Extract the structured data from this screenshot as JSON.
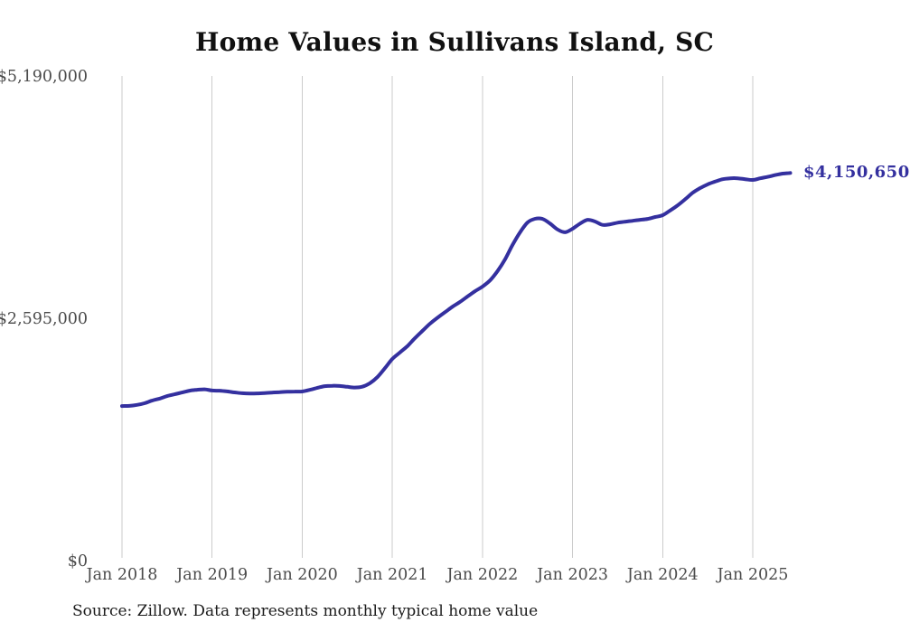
{
  "chart_data": {
    "type": "line",
    "title": "Home Values in Sullivans Island, SC",
    "source_note": "Source: Zillow. Data represents monthly typical home value",
    "series_name": "Typical home value",
    "unit": "USD",
    "frequency": "monthly",
    "start": "Jan 2018",
    "end": "Jun 2025",
    "end_label": "$4,150,650",
    "end_value": 4150650,
    "ylim": [
      0,
      5190000
    ],
    "grid": "vertical-year-lines",
    "legend": "none",
    "line_color": "#34309f",
    "grid_color": "#cbcbcb",
    "tick_label_color": "#4b4b4b",
    "title_color": "#111111",
    "y_ticks": [
      {
        "value": 0,
        "label": "$0"
      },
      {
        "value": 2595000,
        "label": "$2,595,000"
      },
      {
        "value": 5190000,
        "label": "$5,190,000"
      }
    ],
    "x_ticks": [
      {
        "month": 0,
        "label": "Jan 2018"
      },
      {
        "month": 12,
        "label": "Jan 2019"
      },
      {
        "month": 24,
        "label": "Jan 2020"
      },
      {
        "month": 36,
        "label": "Jan 2021"
      },
      {
        "month": 48,
        "label": "Jan 2022"
      },
      {
        "month": 60,
        "label": "Jan 2023"
      },
      {
        "month": 72,
        "label": "Jan 2024"
      },
      {
        "month": 84,
        "label": "Jan 2025"
      }
    ],
    "values": [
      1655000,
      1657000,
      1667000,
      1685000,
      1713000,
      1734000,
      1761000,
      1781000,
      1800000,
      1819000,
      1829000,
      1834000,
      1821000,
      1819000,
      1812000,
      1801000,
      1792000,
      1789000,
      1790000,
      1794000,
      1799000,
      1804000,
      1808000,
      1810000,
      1811000,
      1828000,
      1849000,
      1868000,
      1872000,
      1870000,
      1861000,
      1853000,
      1862000,
      1899000,
      1964000,
      2059000,
      2159000,
      2228000,
      2296000,
      2381000,
      2459000,
      2536000,
      2600000,
      2659000,
      2718000,
      2769000,
      2827000,
      2884000,
      2934000,
      3000000,
      3099000,
      3224000,
      3379000,
      3514000,
      3620000,
      3660000,
      3659000,
      3610000,
      3546000,
      3516000,
      3554000,
      3609000,
      3649000,
      3631000,
      3595000,
      3601000,
      3618000,
      3629000,
      3639000,
      3649000,
      3659000,
      3679000,
      3699000,
      3749000,
      3804000,
      3869000,
      3939000,
      3989000,
      4029000,
      4059000,
      4084000,
      4094000,
      4094000,
      4084000,
      4076000,
      4094000,
      4109000,
      4129000,
      4144000,
      4150650
    ]
  }
}
